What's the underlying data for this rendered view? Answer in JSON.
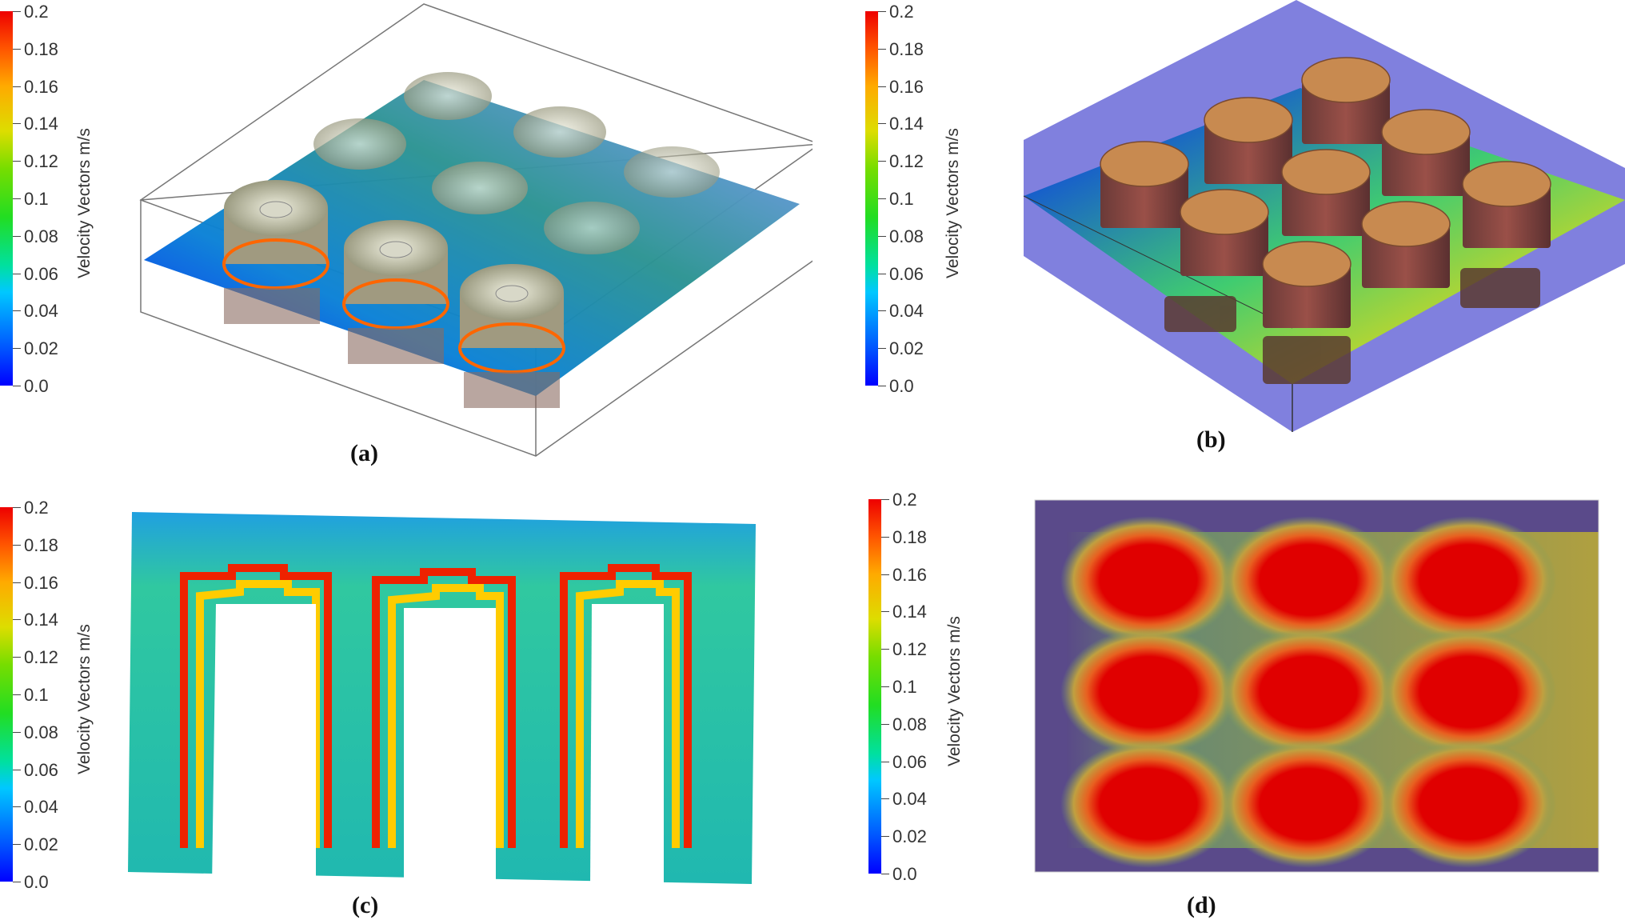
{
  "colorbar": {
    "title": "Velocity Vectors m/s",
    "ticks": [
      "0.2",
      "0.18",
      "0.16",
      "0.14",
      "0.12",
      "0.1",
      "0.08",
      "0.06",
      "0.04",
      "0.02",
      "0.0"
    ]
  },
  "captions": {
    "a": "(a)",
    "b": "(b)",
    "c": "(c)",
    "d": "(d)"
  },
  "colors": {
    "low": "#0000ff",
    "mid": "#22dd22",
    "high": "#ee0000",
    "purple": "#5a4a8a"
  }
}
